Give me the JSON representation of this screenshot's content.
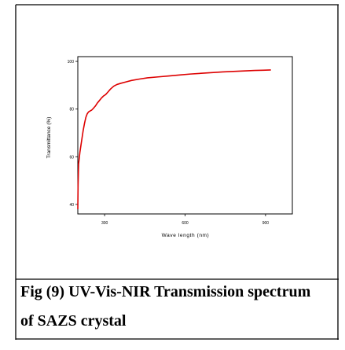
{
  "caption": {
    "line1": "Fig (9) UV-Vis-NIR Transmission spectrum",
    "line2": "of SAZS crystal"
  },
  "chart_data": {
    "type": "line",
    "xlabel": "Wave length (nm)",
    "ylabel": "Transmittance (%)",
    "xlim": [
      200,
      1000
    ],
    "ylim": [
      36,
      102
    ],
    "xticks": [
      300,
      600,
      900
    ],
    "yticks": [
      40,
      60,
      80,
      100
    ],
    "grid": false,
    "line_color": "#dd0000",
    "series": [
      {
        "x": [
          200,
          201,
          203,
          205,
          208,
          212,
          216,
          220,
          225,
          230,
          235,
          240,
          246,
          252,
          258,
          265,
          272,
          280,
          288,
          296,
          304,
          312,
          322,
          334,
          346,
          360,
          380,
          400,
          430,
          460,
          500,
          540,
          580,
          620,
          660,
          700,
          740,
          780,
          820,
          860,
          890,
          920
        ],
        "y": [
          38,
          48,
          57,
          59,
          62,
          65,
          68,
          71,
          74,
          76.5,
          78,
          78.8,
          79.2,
          79.6,
          80.3,
          81.2,
          82.4,
          83.5,
          84.6,
          85.5,
          86.1,
          87.1,
          88.4,
          89.6,
          90.3,
          90.8,
          91.4,
          92.0,
          92.6,
          93.1,
          93.5,
          93.9,
          94.3,
          94.7,
          95.0,
          95.3,
          95.6,
          95.8,
          96.0,
          96.2,
          96.3,
          96.4
        ]
      }
    ]
  }
}
